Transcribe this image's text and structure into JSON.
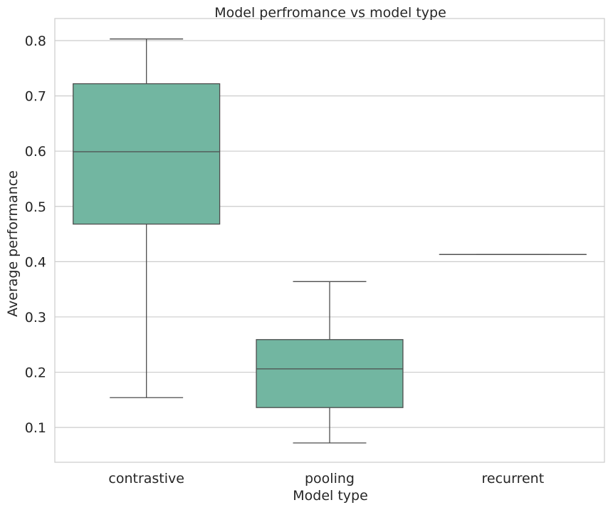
{
  "chart_data": {
    "type": "box",
    "title": "Model perfromance vs model type",
    "xlabel": "Model type",
    "ylabel": "Average performance",
    "ylim": [
      0.037,
      0.84
    ],
    "yticks": [
      0.1,
      0.2,
      0.3,
      0.4,
      0.5,
      0.6,
      0.7,
      0.8
    ],
    "ytick_labels": [
      "0.1",
      "0.2",
      "0.3",
      "0.4",
      "0.5",
      "0.6",
      "0.7",
      "0.8"
    ],
    "grid": "horizontal",
    "box_color": "#72b6a1",
    "line_color": "#4d4d4d",
    "categories": [
      "contrastive",
      "pooling",
      "recurrent"
    ],
    "boxes": [
      {
        "category": "contrastive",
        "whisker_low": 0.154,
        "q1": 0.468,
        "median": 0.599,
        "q3": 0.722,
        "whisker_high": 0.803
      },
      {
        "category": "pooling",
        "whisker_low": 0.072,
        "q1": 0.136,
        "median": 0.206,
        "q3": 0.259,
        "whisker_high": 0.364
      },
      {
        "category": "recurrent",
        "whisker_low": 0.413,
        "q1": 0.413,
        "median": 0.413,
        "q3": 0.413,
        "whisker_high": 0.413
      }
    ]
  }
}
